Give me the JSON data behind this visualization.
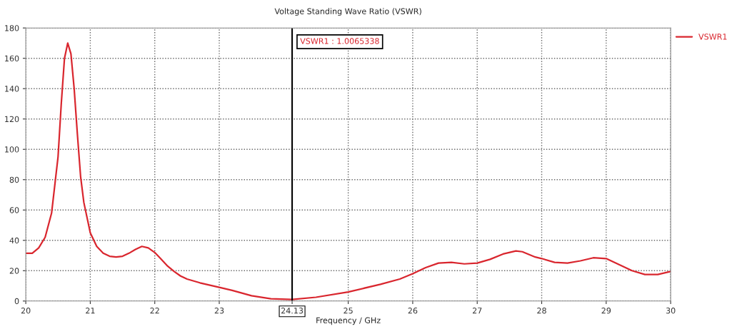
{
  "chart_data": {
    "type": "line",
    "title": "Voltage Standing Wave Ratio (VSWR)",
    "xlabel": "Frequency / GHz",
    "x": [
      20,
      20.1,
      20.2,
      20.3,
      20.4,
      20.5,
      20.55,
      20.6,
      20.65,
      20.7,
      20.75,
      20.8,
      20.85,
      20.9,
      21.0,
      21.1,
      21.2,
      21.3,
      21.4,
      21.5,
      21.6,
      21.7,
      21.8,
      21.9,
      22.0,
      22.1,
      22.2,
      22.3,
      22.4,
      22.5,
      22.7,
      23.0,
      23.2,
      23.5,
      23.8,
      24.13,
      24.5,
      25.0,
      25.5,
      25.8,
      26.0,
      26.2,
      26.4,
      26.6,
      26.8,
      27.0,
      27.2,
      27.4,
      27.6,
      27.7,
      27.9,
      28.0,
      28.2,
      28.4,
      28.6,
      28.8,
      29.0,
      29.2,
      29.4,
      29.6,
      29.8,
      30
    ],
    "series": [
      {
        "name": "VSWR1",
        "color": "#d9262e",
        "values": [
          31.5,
          31.5,
          35,
          42,
          58,
          95,
          130,
          160,
          170,
          163,
          140,
          110,
          82,
          65,
          45,
          36,
          31.5,
          29.5,
          29,
          29.5,
          31.5,
          34,
          36,
          35,
          32,
          27.5,
          23,
          19.5,
          16.5,
          14.5,
          12,
          9,
          7,
          3.5,
          1.5,
          1,
          2.5,
          6,
          11,
          14.5,
          18,
          22,
          25,
          25.5,
          24.5,
          25,
          27.5,
          31,
          33,
          32.5,
          29,
          28,
          25.5,
          25,
          26.5,
          28.5,
          28,
          24,
          20,
          17.5,
          17.5,
          19.5
        ]
      }
    ],
    "xlim": [
      20,
      30
    ],
    "ylim": [
      0,
      180
    ],
    "xticks": [
      20,
      21,
      22,
      23,
      24.13,
      25,
      26,
      27,
      28,
      29,
      30
    ],
    "yticks": [
      0,
      20,
      40,
      60,
      80,
      100,
      120,
      140,
      160,
      180
    ],
    "ref_lines": [
      {
        "axis": "x",
        "value": 24.13,
        "color": "#000000",
        "line_style": "solid"
      }
    ],
    "annotations": [
      "VSWR1 : 1.0065338"
    ],
    "grid": true,
    "legend": "top right",
    "marker": "none",
    "line_style": "solid"
  }
}
